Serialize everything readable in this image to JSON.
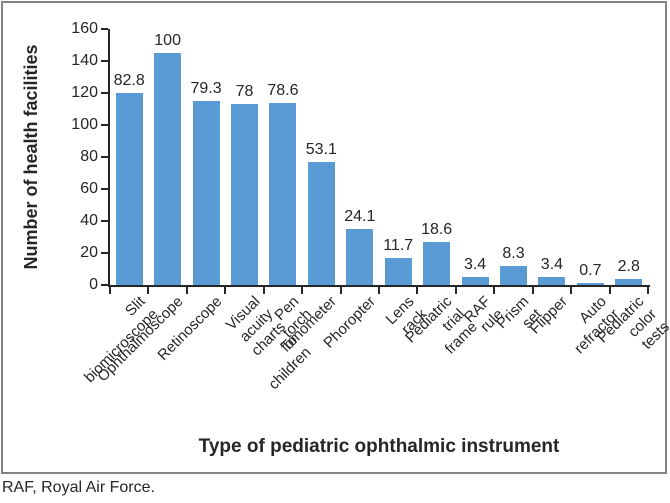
{
  "page": {
    "footnote": "RAF, Royal Air Force."
  },
  "chart_data": {
    "type": "bar",
    "title": "",
    "xlabel": "Type of pediatric ophthalmic instrument",
    "ylabel": "Number of health facilities",
    "categories": [
      "Slit biomicroscope",
      "Ophthalmoscope",
      "Retinoscope",
      "Visual acuity charts\nfor children",
      "Pen torch",
      "Tonometer",
      "Phoropter",
      "Lens rack",
      "Pediatric trial frame",
      "RAF rule",
      "Prism set",
      "Flipper",
      "Auto refractor",
      "Pediatric color tests"
    ],
    "values": [
      120,
      145,
      115,
      113,
      114,
      77,
      35,
      17,
      27,
      5,
      12,
      5,
      1,
      4
    ],
    "bar_labels": [
      "82.8",
      "100",
      "79.3",
      "78",
      "78.6",
      "53.1",
      "24.1",
      "11.7",
      "18.6",
      "3.4",
      "8.3",
      "3.4",
      "0.7",
      "2.8"
    ],
    "ylim": [
      0,
      160
    ],
    "yticks": [
      0,
      20,
      40,
      60,
      80,
      100,
      120,
      140,
      160
    ],
    "grid": false,
    "legend": "none",
    "bar_color": "#5b9bd5",
    "axis_color": "#262626",
    "border_color": "#848484"
  }
}
